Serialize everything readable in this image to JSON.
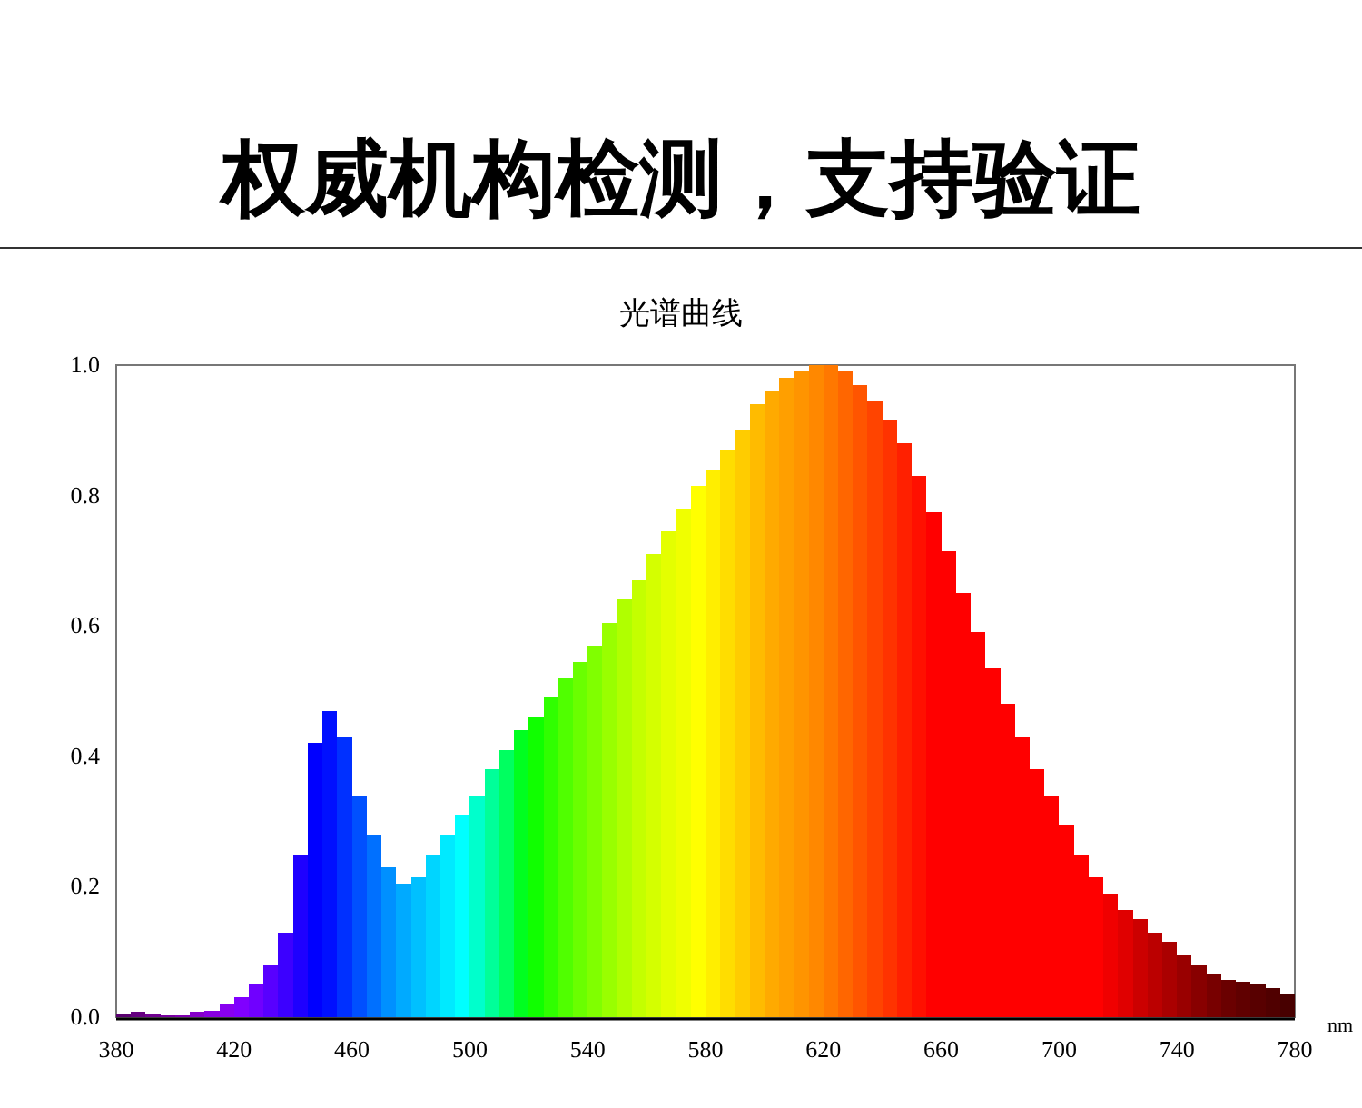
{
  "chart_data": {
    "type": "bar",
    "title": "权威机构检测，支持验证",
    "subtitle": "光谱曲线",
    "xlabel": "nm",
    "x": [
      382.5,
      387.5,
      392.5,
      397.5,
      402.5,
      407.5,
      412.5,
      417.5,
      422.5,
      427.5,
      432.5,
      437.5,
      442.5,
      447.5,
      452.5,
      457.5,
      462.5,
      467.5,
      472.5,
      477.5,
      482.5,
      487.5,
      492.5,
      497.5,
      502.5,
      507.5,
      512.5,
      517.5,
      522.5,
      527.5,
      532.5,
      537.5,
      542.5,
      547.5,
      552.5,
      557.5,
      562.5,
      567.5,
      572.5,
      577.5,
      582.5,
      587.5,
      592.5,
      597.5,
      602.5,
      607.5,
      612.5,
      617.5,
      622.5,
      627.5,
      632.5,
      637.5,
      642.5,
      647.5,
      652.5,
      657.5,
      662.5,
      667.5,
      672.5,
      677.5,
      682.5,
      687.5,
      692.5,
      697.5,
      702.5,
      707.5,
      712.5,
      717.5,
      722.5,
      727.5,
      732.5,
      737.5,
      742.5,
      747.5,
      752.5,
      757.5,
      762.5,
      767.5,
      772.5,
      777.5
    ],
    "values": [
      0.005,
      0.008,
      0.006,
      0.003,
      0.003,
      0.008,
      0.01,
      0.02,
      0.03,
      0.05,
      0.08,
      0.13,
      0.25,
      0.42,
      0.47,
      0.43,
      0.34,
      0.28,
      0.23,
      0.205,
      0.215,
      0.25,
      0.28,
      0.31,
      0.34,
      0.38,
      0.41,
      0.44,
      0.46,
      0.49,
      0.52,
      0.545,
      0.57,
      0.605,
      0.64,
      0.67,
      0.71,
      0.745,
      0.78,
      0.815,
      0.84,
      0.87,
      0.9,
      0.94,
      0.96,
      0.98,
      0.99,
      1.0,
      1.0,
      0.99,
      0.97,
      0.945,
      0.915,
      0.88,
      0.83,
      0.775,
      0.715,
      0.65,
      0.59,
      0.535,
      0.48,
      0.43,
      0.38,
      0.34,
      0.295,
      0.25,
      0.215,
      0.19,
      0.165,
      0.15,
      0.13,
      0.115,
      0.095,
      0.08,
      0.065,
      0.057,
      0.055,
      0.05,
      0.045,
      0.035
    ],
    "colors": [
      "#5a0070",
      "#650080",
      "#700090",
      "#7800a0",
      "#8000b0",
      "#8500c8",
      "#8800e0",
      "#8800f0",
      "#8000ff",
      "#7000ff",
      "#5800ff",
      "#3c00ff",
      "#1e00ff",
      "#0000ff",
      "#0010ff",
      "#0030ff",
      "#0050ff",
      "#0070ff",
      "#0090ff",
      "#00aaff",
      "#00c0ff",
      "#00d5ff",
      "#00eaff",
      "#00ffff",
      "#00ffcc",
      "#00ff99",
      "#00ff60",
      "#00ff20",
      "#10ff00",
      "#30ff00",
      "#50ff00",
      "#6aff00",
      "#80ff00",
      "#99ff00",
      "#b0ff00",
      "#c4ff00",
      "#d4ff00",
      "#e4ff00",
      "#f0ff00",
      "#ffff00",
      "#ffee00",
      "#ffdd00",
      "#ffcc00",
      "#ffbb00",
      "#ffaa00",
      "#ff9f00",
      "#ff9400",
      "#ff8800",
      "#ff7800",
      "#ff6600",
      "#ff5500",
      "#ff4400",
      "#ff3300",
      "#ff2000",
      "#ff1000",
      "#ff0000",
      "#ff0000",
      "#ff0000",
      "#ff0000",
      "#ff0000",
      "#ff0000",
      "#ff0000",
      "#ff0000",
      "#ff0000",
      "#ff0000",
      "#ff0000",
      "#ff0000",
      "#f00000",
      "#e00000",
      "#cc0000",
      "#bb0000",
      "#aa0000",
      "#990000",
      "#880000",
      "#780000",
      "#6a0000",
      "#600000",
      "#580000",
      "#500000",
      "#480000"
    ],
    "xlim": [
      380,
      780
    ],
    "xticks": [
      380,
      420,
      460,
      500,
      540,
      580,
      620,
      660,
      700,
      740,
      780
    ],
    "ylim": [
      0,
      1
    ],
    "yticks": [
      {
        "value": 0,
        "label": "0.0"
      },
      {
        "value": 0.2,
        "label": "0.2"
      },
      {
        "value": 0.4,
        "label": "0.4"
      },
      {
        "value": 0.6,
        "label": "0.6"
      },
      {
        "value": 0.8,
        "label": "0.8"
      },
      {
        "value": 1,
        "label": "1.0"
      }
    ]
  }
}
